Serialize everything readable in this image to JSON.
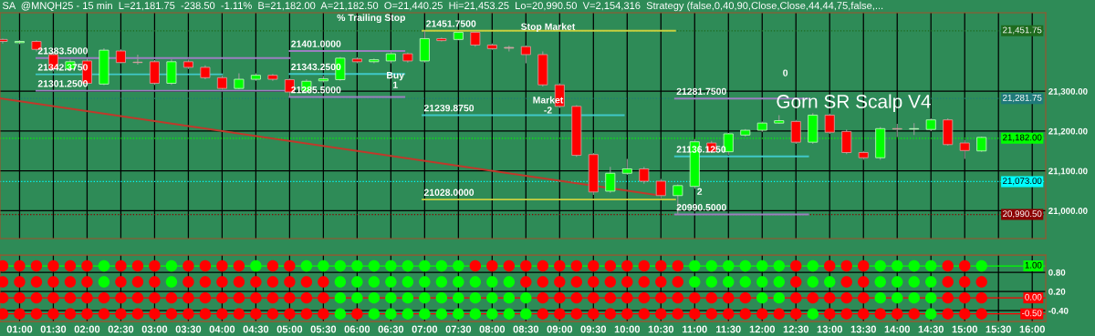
{
  "chart_data": [
    {
      "type": "candlestick",
      "title": "SA  @MNQH25 - 15 min  L=21,181.75  -238.50  -1.11%  B=21,182.00  A=21,182.50  O=21,440.25  Hi=21,453.25  Lo=20,990.50  V=2,154,316  Strategy (false,0,40,90,Close,Close,44,44,75,false,...",
      "subtitle": "Gorn SR Scalp V4",
      "x": [
        0.75,
        1.0,
        1.25,
        1.5,
        1.75,
        2.0,
        2.25,
        2.5,
        2.75,
        3.0,
        3.25,
        3.5,
        3.75,
        4.0,
        4.25,
        4.5,
        4.75,
        5.0,
        5.25,
        5.5,
        5.75,
        6.0,
        6.25,
        6.5,
        6.75,
        7.0,
        7.25,
        7.5,
        7.75,
        8.0,
        8.25,
        8.5,
        8.75,
        9.0,
        9.25,
        9.5,
        9.75,
        10.0,
        10.25,
        10.5,
        10.75,
        11.0,
        11.25,
        11.5,
        11.75,
        12.0,
        12.25,
        12.5,
        12.75,
        13.0,
        13.25,
        13.5,
        13.75,
        14.0,
        14.25,
        14.5,
        14.75,
        15.0,
        15.25
      ],
      "ohlc": [
        [
          21430,
          21432,
          21420,
          21425
        ],
        [
          21422,
          21428,
          21418,
          21425
        ],
        [
          21425,
          21428,
          21400,
          21405
        ],
        [
          21392,
          21398,
          21350,
          21356
        ],
        [
          21356,
          21380,
          21350,
          21374
        ],
        [
          21376,
          21382,
          21316,
          21320
        ],
        [
          21318,
          21408,
          21315,
          21403
        ],
        [
          21401,
          21405,
          21370,
          21372
        ],
        [
          21373,
          21392,
          21367,
          21372
        ],
        [
          21374,
          21378,
          21316,
          21320
        ],
        [
          21320,
          21380,
          21316,
          21374
        ],
        [
          21374,
          21380,
          21356,
          21360
        ],
        [
          21360,
          21365,
          21330,
          21334
        ],
        [
          21334,
          21340,
          21303,
          21307
        ],
        [
          21307,
          21345,
          21305,
          21330
        ],
        [
          21330,
          21345,
          21326,
          21340
        ],
        [
          21340,
          21343,
          21326,
          21330
        ],
        [
          21329,
          21332,
          21286,
          21298
        ],
        [
          21300,
          21330,
          21296,
          21325
        ],
        [
          21326,
          21338,
          21322,
          21331
        ],
        [
          21329,
          21386,
          21326,
          21383
        ],
        [
          21381,
          21385,
          21370,
          21374
        ],
        [
          21374,
          21382,
          21370,
          21379
        ],
        [
          21376,
          21400,
          21370,
          21394
        ],
        [
          21394,
          21397,
          21372,
          21376
        ],
        [
          21376,
          21451.75,
          21372,
          21432
        ],
        [
          21432,
          21435,
          21425,
          21427
        ],
        [
          21430,
          21450,
          21428,
          21448
        ],
        [
          21448,
          21450,
          21412,
          21416
        ],
        [
          21416,
          21420,
          21404,
          21407
        ],
        [
          21410,
          21414,
          21400,
          21408
        ],
        [
          21412,
          21415,
          21370,
          21392
        ],
        [
          21392,
          21400,
          21312,
          21316
        ],
        [
          21316,
          21320,
          21258,
          21262
        ],
        [
          21262,
          21265,
          21135,
          21139
        ],
        [
          21141,
          21145,
          21040,
          21047
        ],
        [
          21049,
          21110,
          21045,
          21094
        ],
        [
          21094,
          21130,
          21090,
          21105
        ],
        [
          21105,
          21110,
          21068,
          21074
        ],
        [
          21074,
          21080,
          21030,
          21038
        ],
        [
          21038,
          21066,
          20990.5,
          21063
        ],
        [
          21061,
          21180,
          21055,
          21173
        ],
        [
          21170,
          21175,
          21145,
          21148
        ],
        [
          21148,
          21195,
          21140,
          21193
        ],
        [
          21190,
          21205,
          21186,
          21202
        ],
        [
          21202,
          21224,
          21198,
          21220
        ],
        [
          21220,
          21240,
          21218,
          21226
        ],
        [
          21224,
          21228,
          21168,
          21172
        ],
        [
          21172,
          21245,
          21168,
          21240
        ],
        [
          21240,
          21244,
          21193,
          21197
        ],
        [
          21199,
          21204,
          21142,
          21146
        ],
        [
          21146,
          21150,
          21128,
          21133
        ],
        [
          21133,
          21210,
          21128,
          21206
        ],
        [
          21206,
          21218,
          21185,
          21205
        ],
        [
          21205,
          21220,
          21190,
          21206
        ],
        [
          21204,
          21232,
          21200,
          21228
        ],
        [
          21228,
          21232,
          21163,
          21166
        ],
        [
          21170,
          21178,
          21130,
          21151
        ],
        [
          21150,
          21186,
          21148,
          21184
        ]
      ],
      "colors": [
        "#ff0000",
        "#00ff00",
        "#ff0000",
        "#ff0000",
        "#00ff00",
        "#ff0000",
        "#00ff00",
        "#ff0000",
        "#b0b0b0",
        "#ff0000",
        "#00ff00",
        "#ff0000",
        "#ff0000",
        "#ff0000",
        "#00ff00",
        "#00ff00",
        "#ff0000",
        "#ff0000",
        "#00ff00",
        "#00ff00",
        "#00ff00",
        "#ff0000",
        "#00ff00",
        "#00ff00",
        "#ff0000",
        "#00ff00",
        "#ff0000",
        "#00ff00",
        "#ff0000",
        "#ff0000",
        "#b0b0b0",
        "#ff0000",
        "#ff0000",
        "#ff0000",
        "#ff0000",
        "#ff0000",
        "#00ff00",
        "#00ff00",
        "#ff0000",
        "#ff0000",
        "#00ff00",
        "#00ff00",
        "#ff0000",
        "#00ff00",
        "#00ff00",
        "#00ff00",
        "#00ff00",
        "#ff0000",
        "#00ff00",
        "#ff0000",
        "#ff0000",
        "#ff0000",
        "#00ff00",
        "#b0b0b0",
        "#b0b0b0",
        "#00ff00",
        "#ff0000",
        "#ff0000",
        "#00ff00"
      ],
      "series": [
        {
          "type": "line",
          "x": [
            0.71,
            10.41
          ],
          "values": [
            21282,
            21040
          ],
          "color": "#c0392b"
        },
        {
          "type": "line",
          "x": [
            1.25,
            5.0
          ],
          "values": [
            21383.5,
            21383.5
          ],
          "color": "#9b7fc0"
        },
        {
          "type": "line",
          "x": [
            1.25,
            4.0
          ],
          "values": [
            21342.375,
            21342.375
          ],
          "color": "#40c8c8"
        },
        {
          "type": "line",
          "x": [
            1.25,
            5.0
          ],
          "values": [
            21301.25,
            21301.25
          ],
          "color": "#9b7fc0"
        },
        {
          "type": "line",
          "x": [
            5.0,
            6.7
          ],
          "values": [
            21401,
            21401
          ],
          "color": "#9b7fc0"
        },
        {
          "type": "line",
          "x": [
            5.0,
            6.7
          ],
          "values": [
            21343.25,
            21343.25
          ],
          "color": "#40c8c8"
        },
        {
          "type": "line",
          "x": [
            5.0,
            6.7
          ],
          "values": [
            21285.5,
            21285.5
          ],
          "color": "#9b7fc0"
        },
        {
          "type": "line",
          "x": [
            6.97,
            10.71
          ],
          "values": [
            21451.75,
            21451.75
          ],
          "color": "#c8d040"
        },
        {
          "type": "line",
          "x": [
            6.97,
            9.95
          ],
          "values": [
            21239.875,
            21239.875
          ],
          "color": "#40c8c8"
        },
        {
          "type": "line",
          "x": [
            6.97,
            10.71
          ],
          "values": [
            21028,
            21028
          ],
          "color": "#c8d040"
        },
        {
          "type": "line",
          "x": [
            10.71,
            12.68
          ],
          "values": [
            21281.75,
            21281.75
          ],
          "color": "#9b7fc0"
        },
        {
          "type": "line",
          "x": [
            10.71,
            12.68
          ],
          "values": [
            21136.125,
            21136.125
          ],
          "color": "#40c8c8"
        },
        {
          "type": "line",
          "x": [
            10.71,
            12.68
          ],
          "values": [
            20990.5,
            20990.5
          ],
          "color": "#9b7fc0"
        }
      ],
      "xlim": [
        0.71,
        16.2
      ],
      "xticks": [
        1,
        1.5,
        2,
        2.5,
        3,
        3.5,
        4,
        4.5,
        5,
        5.5,
        6,
        6.5,
        7,
        7.5,
        8,
        8.5,
        9,
        9.5,
        10,
        10.5,
        11,
        11.5,
        12,
        12.5,
        13,
        13.5,
        14,
        14.5,
        15,
        15.5,
        16
      ],
      "ylim": [
        20930,
        21497
      ],
      "yticks": [
        {
          "value": 21000,
          "label": "21,000.00"
        },
        {
          "value": 21100,
          "label": "21,100.00"
        },
        {
          "value": 21200,
          "label": "21,200.00"
        },
        {
          "value": 21300,
          "label": "21,300.00"
        }
      ],
      "tick_labels": "y",
      "grid": true,
      "ref_lines": [
        {
          "axis": "y",
          "value": 21451.75,
          "label": "21,451.75",
          "color": "#1e6b1e",
          "line_style": "dotted"
        },
        {
          "axis": "y",
          "value": 21281.75,
          "label": "21,281.75",
          "color": "#1f7a7a",
          "line_style": "dotted"
        },
        {
          "axis": "y",
          "value": 21182,
          "label": "21,182.00",
          "color": "#00ff00",
          "line_style": "dotted"
        },
        {
          "axis": "y",
          "value": 21073,
          "label": "21,073.00",
          "color": "#00ffff",
          "line_style": "dotted"
        },
        {
          "axis": "y",
          "value": 20990.5,
          "label": "20,990.50",
          "color": "#8b0000",
          "line_style": "dotted"
        }
      ],
      "annotations": [
        {
          "text": "21383.5000",
          "x": 1.25,
          "y": 21383.5
        },
        {
          "text": "21342.3750",
          "x": 1.25,
          "y": 21342.375
        },
        {
          "text": "21301.2500",
          "x": 1.25,
          "y": 21301.25
        },
        {
          "text": "21401.0000",
          "x": 5.0,
          "y": 21401
        },
        {
          "text": "21343.2500",
          "x": 5.0,
          "y": 21343.25
        },
        {
          "text": "21285.5000",
          "x": 5.0,
          "y": 21285.5
        },
        {
          "text": "21451.7500",
          "x": 7.0,
          "y": 21451.75
        },
        "% Trailing Stop",
        "Buy",
        "1",
        "Stop Market",
        "Market",
        "-2",
        {
          "text": "21239.8750",
          "x": 6.97,
          "y": 21239.875
        },
        {
          "text": "21028.0000",
          "x": 6.97,
          "y": 21028
        },
        {
          "text": "21281.7500",
          "x": 10.71,
          "y": 21281.75
        },
        {
          "text": "21136.1250",
          "x": 10.71,
          "y": 21136.125
        },
        {
          "text": "20990.5000",
          "x": 10.71,
          "y": 20990.5
        },
        "2",
        "0"
      ]
    },
    {
      "type": "scatter",
      "marker": "circle",
      "x": [
        0.75,
        1.0,
        1.25,
        1.5,
        1.75,
        2.0,
        2.25,
        2.5,
        2.75,
        3.0,
        3.25,
        3.5,
        3.75,
        4.0,
        4.25,
        4.5,
        4.75,
        5.0,
        5.25,
        5.5,
        5.75,
        6.0,
        6.25,
        6.5,
        6.75,
        7.0,
        7.25,
        7.5,
        7.75,
        8.0,
        8.25,
        8.5,
        8.75,
        9.0,
        9.25,
        9.5,
        9.75,
        10.0,
        10.25,
        10.5,
        10.75,
        11.0,
        11.25,
        11.5,
        11.75,
        12.0,
        12.25,
        12.5,
        12.75,
        13.0,
        13.25,
        13.5,
        13.75,
        14.0,
        14.25,
        14.5,
        14.75,
        15.0,
        15.25
      ],
      "series": [
        {
          "values": [
            1,
            1,
            1,
            1,
            1,
            1,
            1,
            1,
            1,
            1,
            1,
            1,
            1,
            1,
            1,
            1,
            1,
            1,
            1,
            1,
            1,
            1,
            1,
            1,
            1,
            1,
            1,
            1,
            1,
            1,
            1,
            1,
            1,
            1,
            1,
            1,
            1,
            1,
            1,
            1,
            1,
            1,
            1,
            1,
            1,
            1,
            1,
            1,
            1,
            1,
            1,
            1,
            1,
            1,
            1,
            1,
            1,
            1,
            1
          ],
          "colors": [
            "#ff0000",
            "#ff0000",
            "#ff0000",
            "#ff0000",
            "#ff0000",
            "#ff0000",
            "#00ff00",
            "#ff0000",
            "#ff0000",
            "#ff0000",
            "#00ff00",
            "#ff0000",
            "#ff0000",
            "#ff0000",
            "#ff0000",
            "#00ff00",
            "#ff0000",
            "#ff0000",
            "#00ff00",
            "#00ff00",
            "#00ff00",
            "#00ff00",
            "#00ff00",
            "#00ff00",
            "#00ff00",
            "#00ff00",
            "#00ff00",
            "#00ff00",
            "#ff0000",
            "#ff0000",
            "#ff0000",
            "#ff0000",
            "#ff0000",
            "#ff0000",
            "#ff0000",
            "#ff0000",
            "#ff0000",
            "#ff0000",
            "#ff0000",
            "#ff0000",
            "#ff0000",
            "#00ff00",
            "#00ff00",
            "#00ff00",
            "#00ff00",
            "#00ff00",
            "#00ff00",
            "#ff0000",
            "#00ff00",
            "#ff0000",
            "#ff0000",
            "#ff0000",
            "#00ff00",
            "#00ff00",
            "#00ff00",
            "#00ff00",
            "#ff0000",
            "#ff0000",
            "#00ff00"
          ]
        },
        {
          "values": [
            0.5,
            0.5,
            0.5,
            0.5,
            0.5,
            0.5,
            0.5,
            0.5,
            0.5,
            0.5,
            0.5,
            0.5,
            0.5,
            0.5,
            0.5,
            0.5,
            0.5,
            0.5,
            0.5,
            0.5,
            0.5,
            0.5,
            0.5,
            0.5,
            0.5,
            0.5,
            0.5,
            0.5,
            0.5,
            0.5,
            0.5,
            0.5,
            0.5,
            0.5,
            0.5,
            0.5,
            0.5,
            0.5,
            0.5,
            0.5,
            0.5,
            0.5,
            0.5,
            0.5,
            0.5,
            0.5,
            0.5,
            0.5,
            0.5,
            0.5,
            0.5,
            0.5,
            0.5,
            0.5,
            0.5,
            0.5,
            0.5,
            0.5,
            0.5
          ],
          "colors": [
            "#ff0000",
            "#ff0000",
            "#ff0000",
            "#ff0000",
            "#ff0000",
            "#ff0000",
            "#00ff00",
            "#ff0000",
            "#ff0000",
            "#ff0000",
            "#00ff00",
            "#ff0000",
            "#ff0000",
            "#ff0000",
            "#ff0000",
            "#ff0000",
            "#ff0000",
            "#ff0000",
            "#ff0000",
            "#ff0000",
            "#00ff00",
            "#00ff00",
            "#00ff00",
            "#00ff00",
            "#00ff00",
            "#00ff00",
            "#00ff00",
            "#00ff00",
            "#00ff00",
            "#00ff00",
            "#00ff00",
            "#ff0000",
            "#ff0000",
            "#ff0000",
            "#ff0000",
            "#ff0000",
            "#ff0000",
            "#ff0000",
            "#ff0000",
            "#ff0000",
            "#ff0000",
            "#00ff00",
            "#00ff00",
            "#00ff00",
            "#00ff00",
            "#00ff00",
            "#00ff00",
            "#ff0000",
            "#00ff00",
            "#00ff00",
            "#ff0000",
            "#ff0000",
            "#00ff00",
            "#00ff00",
            "#00ff00",
            "#00ff00",
            "#ff0000",
            "#ff0000",
            "#ff0000"
          ]
        },
        {
          "values": [
            0,
            0,
            0,
            0,
            0,
            0,
            0,
            0,
            0,
            0,
            0,
            0,
            0,
            0,
            0,
            0,
            0,
            0,
            0,
            0,
            0,
            0,
            0,
            0,
            0,
            0,
            0,
            0,
            0,
            0,
            0,
            0,
            0,
            0,
            0,
            0,
            0,
            0,
            0,
            0,
            0,
            0,
            0,
            0,
            0,
            0,
            0,
            0,
            0,
            0,
            0,
            0,
            0,
            0,
            0,
            0,
            0,
            0,
            0
          ],
          "colors": [
            "#ff0000",
            "#ff0000",
            "#ff0000",
            "#ff0000",
            "#ff0000",
            "#ff0000",
            "#ff0000",
            "#ff0000",
            "#ff0000",
            "#ff0000",
            "#ff0000",
            "#ff0000",
            "#ff0000",
            "#ff0000",
            "#ff0000",
            "#ff0000",
            "#ff0000",
            "#ff0000",
            "#ff0000",
            "#ff0000",
            "#00ff00",
            "#00ff00",
            "#00ff00",
            "#00ff00",
            "#00ff00",
            "#00ff00",
            "#00ff00",
            "#00ff00",
            "#00ff00",
            "#00ff00",
            "#00ff00",
            "#00ff00",
            "#ff0000",
            "#ff0000",
            "#ff0000",
            "#ff0000",
            "#ff0000",
            "#ff0000",
            "#ff0000",
            "#ff0000",
            "#ff0000",
            "#ff0000",
            "#ff0000",
            "#ff0000",
            "#ff0000",
            "#00ff00",
            "#00ff00",
            "#ff0000",
            "#ff0000",
            "#ff0000",
            "#ff0000",
            "#ff0000",
            "#00ff00",
            "#00ff00",
            "#00ff00",
            "#00ff00",
            "#ff0000",
            "#ff0000",
            "#ff0000"
          ]
        },
        {
          "values": [
            -0.5,
            -0.5,
            -0.5,
            -0.5,
            -0.5,
            -0.5,
            -0.5,
            -0.5,
            -0.5,
            -0.5,
            -0.5,
            -0.5,
            -0.5,
            -0.5,
            -0.5,
            -0.5,
            -0.5,
            -0.5,
            -0.5,
            -0.5,
            -0.5,
            -0.5,
            -0.5,
            -0.5,
            -0.5,
            -0.5,
            -0.5,
            -0.5,
            -0.5,
            -0.5,
            -0.5,
            -0.5,
            -0.5,
            -0.5,
            -0.5,
            -0.5,
            -0.5,
            -0.5,
            -0.5,
            -0.5,
            -0.5,
            -0.5,
            -0.5,
            -0.5,
            -0.5,
            -0.5,
            -0.5,
            -0.5,
            -0.5,
            -0.5,
            -0.5,
            -0.5,
            -0.5,
            -0.5,
            -0.5,
            -0.5,
            -0.5,
            -0.5,
            -0.5
          ],
          "colors": [
            "#ff0000",
            "#ff0000",
            "#ff0000",
            "#ff0000",
            "#ff0000",
            "#ff0000",
            "#ff0000",
            "#ff0000",
            "#ff0000",
            "#ff0000",
            "#ff0000",
            "#ff0000",
            "#ff0000",
            "#ff0000",
            "#ff0000",
            "#ff0000",
            "#ff0000",
            "#ff0000",
            "#ff0000",
            "#ff0000",
            "#00ff00",
            "#ff0000",
            "#00ff00",
            "#00ff00",
            "#00ff00",
            "#00ff00",
            "#00ff00",
            "#00ff00",
            "#00ff00",
            "#00ff00",
            "#00ff00",
            "#00ff00",
            "#ff0000",
            "#ff0000",
            "#ff0000",
            "#ff0000",
            "#ff0000",
            "#ff0000",
            "#ff0000",
            "#ff0000",
            "#ff0000",
            "#ff0000",
            "#ff0000",
            "#ff0000",
            "#ff0000",
            "#ff0000",
            "#ff0000",
            "#ff0000",
            "#00ff00",
            "#ff0000",
            "#ff0000",
            "#ff0000",
            "#ff0000",
            "#ff0000",
            "#ff0000",
            "#00ff00",
            "#ff0000",
            "#ff0000",
            "#ff0000"
          ]
        }
      ],
      "xlim": [
        0.71,
        16.2
      ],
      "xticks": [
        {
          "value": 1,
          "label": "01:00"
        },
        {
          "value": 1.5,
          "label": "01:30"
        },
        {
          "value": 2,
          "label": "02:00"
        },
        {
          "value": 2.5,
          "label": "02:30"
        },
        {
          "value": 3,
          "label": "03:00"
        },
        {
          "value": 3.5,
          "label": "03:30"
        },
        {
          "value": 4,
          "label": "04:00"
        },
        {
          "value": 4.5,
          "label": "04:30"
        },
        {
          "value": 5,
          "label": "05:00"
        },
        {
          "value": 5.5,
          "label": "05:30"
        },
        {
          "value": 6,
          "label": "06:00"
        },
        {
          "value": 6.5,
          "label": "06:30"
        },
        {
          "value": 7,
          "label": "07:00"
        },
        {
          "value": 7.5,
          "label": "07:30"
        },
        {
          "value": 8,
          "label": "08:00"
        },
        {
          "value": 8.5,
          "label": "08:30"
        },
        {
          "value": 9,
          "label": "09:00"
        },
        {
          "value": 9.5,
          "label": "09:30"
        },
        {
          "value": 10,
          "label": "10:00"
        },
        {
          "value": 10.5,
          "label": "10:30"
        },
        {
          "value": 11,
          "label": "11:00"
        },
        {
          "value": 11.5,
          "label": "11:30"
        },
        {
          "value": 12,
          "label": "12:00"
        },
        {
          "value": 12.5,
          "label": "12:30"
        },
        {
          "value": 13,
          "label": "13:00"
        },
        {
          "value": 13.5,
          "label": "13:30"
        },
        {
          "value": 14,
          "label": "14:00"
        },
        {
          "value": 14.5,
          "label": "14:30"
        },
        {
          "value": 15,
          "label": "15:00"
        },
        {
          "value": 15.5,
          "label": "15:30"
        },
        {
          "value": 16,
          "label": "16:00"
        }
      ],
      "ylim": [
        -0.74,
        1.34
      ],
      "yticks": [
        {
          "value": 0.8,
          "label": "0.80"
        },
        {
          "value": 0.2,
          "label": "0.20"
        },
        {
          "value": -0.4,
          "label": "-0.40"
        }
      ],
      "grid": true,
      "ref_lines": [
        {
          "axis": "y",
          "value": 1,
          "label": "1.00",
          "color": "#00ff00"
        },
        {
          "axis": "y",
          "value": 0,
          "label": "0.00",
          "color": "#ff0000"
        },
        {
          "axis": "y",
          "value": -0.5,
          "label": "-0.50",
          "color": "#ff0000"
        }
      ]
    }
  ]
}
